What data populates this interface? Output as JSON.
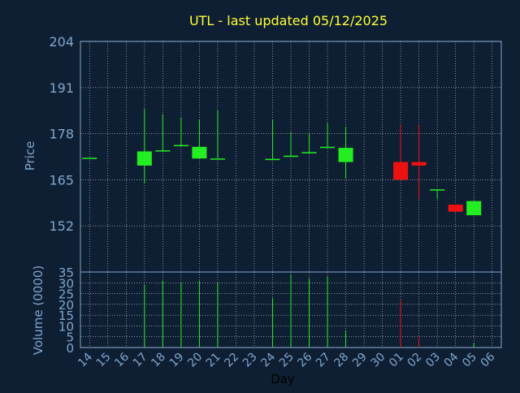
{
  "chart_data": {
    "type": "candlestick",
    "title": "UTL - last updated 05/12/2025",
    "xlabel": "Day",
    "ylabel_price": "Price",
    "ylabel_volume": "Volume (0000)",
    "price_ylim": [
      139,
      204
    ],
    "price_ticks": [
      204,
      191,
      178,
      165,
      152
    ],
    "volume_ylim": [
      0,
      35
    ],
    "volume_ticks": [
      35,
      30,
      25,
      20,
      15,
      10,
      5,
      0
    ],
    "grid": true,
    "x_ticks": [
      "14",
      "15",
      "16",
      "17",
      "18",
      "19",
      "20",
      "21",
      "22",
      "23",
      "24",
      "25",
      "26",
      "27",
      "28",
      "29",
      "30",
      "01",
      "02",
      "03",
      "04",
      "05",
      "06"
    ],
    "candles": [
      {
        "day": "14",
        "open": 171.0,
        "close": 171.2,
        "high": 171.2,
        "low": 171.0
      },
      {
        "day": "17",
        "open": 169.0,
        "close": 173.0,
        "high": 185.0,
        "low": 164.0
      },
      {
        "day": "18",
        "open": 173.0,
        "close": 173.3,
        "high": 183.5,
        "low": 173.0
      },
      {
        "day": "19",
        "open": 174.5,
        "close": 174.8,
        "high": 182.5,
        "low": 174.5
      },
      {
        "day": "20",
        "open": 171.0,
        "close": 174.3,
        "high": 182.0,
        "low": 171.0
      },
      {
        "day": "21",
        "open": 170.7,
        "close": 171.0,
        "high": 184.5,
        "low": 170.7
      },
      {
        "day": "24",
        "open": 170.6,
        "close": 170.9,
        "high": 182.0,
        "low": 170.6
      },
      {
        "day": "25",
        "open": 171.5,
        "close": 171.8,
        "high": 178.5,
        "low": 171.5
      },
      {
        "day": "26",
        "open": 172.5,
        "close": 172.8,
        "high": 178.0,
        "low": 172.5
      },
      {
        "day": "27",
        "open": 174.0,
        "close": 174.3,
        "high": 181.0,
        "low": 174.0
      },
      {
        "day": "28",
        "open": 170.0,
        "close": 174.0,
        "high": 180.0,
        "low": 165.5
      },
      {
        "day": "01",
        "open": 170.0,
        "close": 165.0,
        "high": 180.5,
        "low": 165.0
      },
      {
        "day": "02",
        "open": 170.0,
        "close": 169.0,
        "high": 180.5,
        "low": 159.5
      },
      {
        "day": "03",
        "open": 162.0,
        "close": 162.3,
        "high": 162.3,
        "low": 159.5
      },
      {
        "day": "04",
        "open": 158.0,
        "close": 156.0,
        "high": 158.0,
        "low": 156.0
      },
      {
        "day": "05",
        "open": 155.0,
        "close": 159.0,
        "high": 159.0,
        "low": 155.0
      }
    ],
    "volume": [
      {
        "day": "17",
        "value": 29
      },
      {
        "day": "18",
        "value": 31
      },
      {
        "day": "19",
        "value": 30
      },
      {
        "day": "20",
        "value": 31
      },
      {
        "day": "21",
        "value": 30
      },
      {
        "day": "24",
        "value": 23
      },
      {
        "day": "25",
        "value": 34
      },
      {
        "day": "26",
        "value": 32
      },
      {
        "day": "27",
        "value": 33
      },
      {
        "day": "28",
        "value": 8
      },
      {
        "day": "01",
        "value": 22
      },
      {
        "day": "02",
        "value": 5
      },
      {
        "day": "05",
        "value": 2
      }
    ]
  },
  "colors": {
    "background": "#0f1f33",
    "title": "#ffff33",
    "axis_text": "#7fa6cc",
    "grid": "#ffffff",
    "up": "#22ee22",
    "down": "#ee1111"
  }
}
